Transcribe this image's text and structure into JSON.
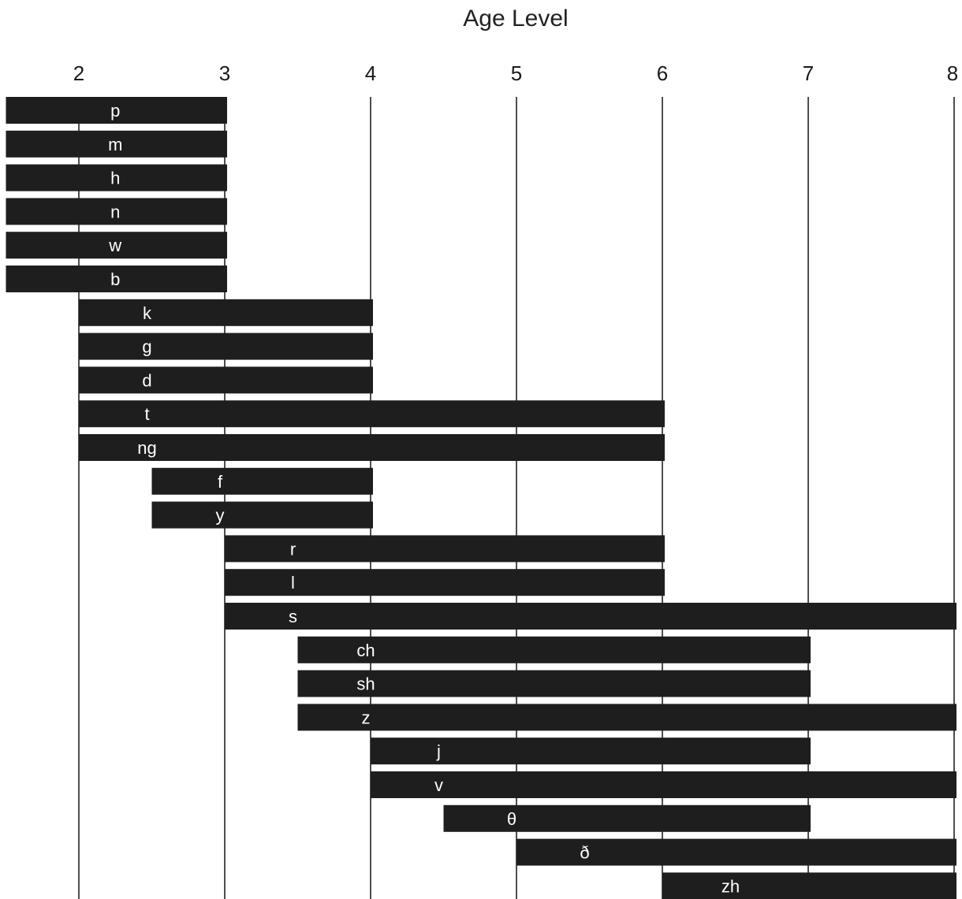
{
  "chart_data": {
    "type": "bar",
    "orientation": "horizontal-range",
    "title": "Age Level",
    "xlabel": "",
    "ylabel": "",
    "x_axis_position": "top",
    "xlim": [
      1.5,
      8
    ],
    "x_ticks": [
      2,
      3,
      4,
      5,
      6,
      7,
      8
    ],
    "grid": true,
    "legend": "none",
    "bar_color": "#1e1e1e",
    "grid_color": "#222222",
    "label_color": "#ffffff",
    "categories": [
      "p",
      "m",
      "h",
      "n",
      "w",
      "b",
      "k",
      "g",
      "d",
      "t",
      "ng",
      "f",
      "y",
      "r",
      "l",
      "s",
      "ch",
      "sh",
      "z",
      "j",
      "v",
      "θ",
      "ð",
      "zh"
    ],
    "ranges": [
      {
        "label": "p",
        "start": 1.5,
        "end": 3
      },
      {
        "label": "m",
        "start": 1.5,
        "end": 3
      },
      {
        "label": "h",
        "start": 1.5,
        "end": 3
      },
      {
        "label": "n",
        "start": 1.5,
        "end": 3
      },
      {
        "label": "w",
        "start": 1.5,
        "end": 3
      },
      {
        "label": "b",
        "start": 1.5,
        "end": 3
      },
      {
        "label": "k",
        "start": 2,
        "end": 4
      },
      {
        "label": "g",
        "start": 2,
        "end": 4
      },
      {
        "label": "d",
        "start": 2,
        "end": 4
      },
      {
        "label": "t",
        "start": 2,
        "end": 6
      },
      {
        "label": "ng",
        "start": 2,
        "end": 6
      },
      {
        "label": "f",
        "start": 2.5,
        "end": 4
      },
      {
        "label": "y",
        "start": 2.5,
        "end": 4
      },
      {
        "label": "r",
        "start": 3,
        "end": 6
      },
      {
        "label": "l",
        "start": 3,
        "end": 6
      },
      {
        "label": "s",
        "start": 3,
        "end": 8
      },
      {
        "label": "ch",
        "start": 3.5,
        "end": 7
      },
      {
        "label": "sh",
        "start": 3.5,
        "end": 7
      },
      {
        "label": "z",
        "start": 3.5,
        "end": 8
      },
      {
        "label": "j",
        "start": 4,
        "end": 7
      },
      {
        "label": "v",
        "start": 4,
        "end": 8
      },
      {
        "label": "θ",
        "start": 4.5,
        "end": 7
      },
      {
        "label": "ð",
        "start": 5,
        "end": 8
      },
      {
        "label": "zh",
        "start": 6,
        "end": 8
      }
    ]
  }
}
